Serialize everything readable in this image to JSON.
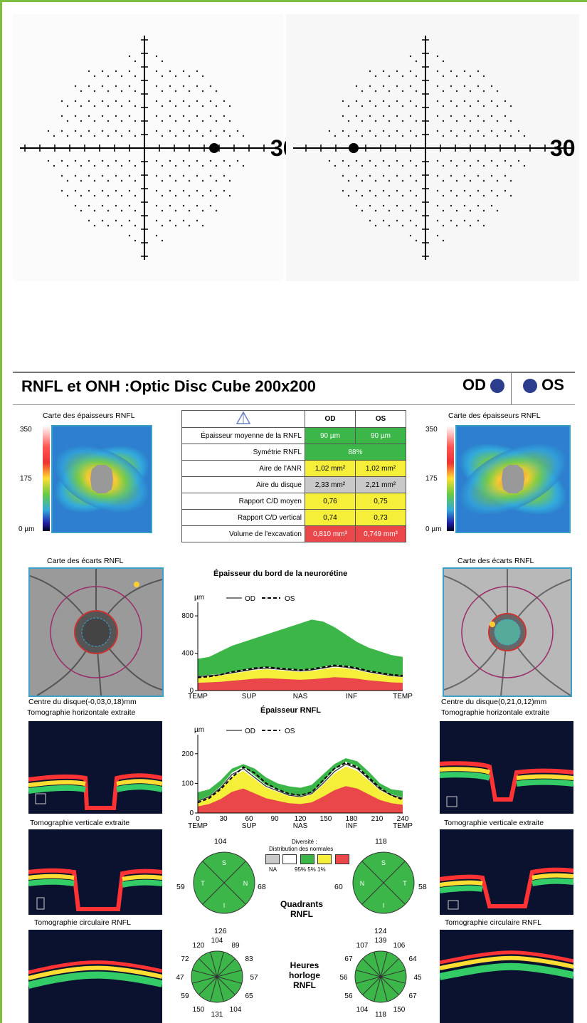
{
  "visual_field": {
    "left_scale_label": "30",
    "right_scale_label": "30"
  },
  "report": {
    "title": "RNFL et ONH :Optic Disc Cube 200x200",
    "eye_od": "OD",
    "eye_os": "OS",
    "thickness_map_title": "Carte des épaisseurs RNFL",
    "scale_max": "350",
    "scale_mid": "175",
    "scale_min": "0 µm",
    "scale_min_right": "0 µm",
    "deviation_map_title": "Carte des écarts RNFL",
    "disc_center_od": "Centre du disque(-0,03,0,18)mm",
    "disc_center_os": "Centre du disque(0,21,0,12)mm",
    "tomo_horizontal": "Tomographie horizontale extraite",
    "tomo_vertical": "Tomographie verticale extraite",
    "tomo_circular": "Tomographie circulaire RNFL"
  },
  "table": {
    "col_od": "OD",
    "col_os": "OS",
    "rows": [
      {
        "label": "Épaisseur moyenne de la RNFL",
        "od": "90 µm",
        "os": "90 µm"
      },
      {
        "label": "Symétrie RNFL",
        "both": "88%"
      },
      {
        "label": "Aire de l'ANR",
        "od": "1,02 mm²",
        "os": "1,02 mm²"
      },
      {
        "label": "Aire du disque",
        "od": "2,33 mm²",
        "os": "2,21 mm²"
      },
      {
        "label": "Rapport C/D moyen",
        "od": "0,76",
        "os": "0,75"
      },
      {
        "label": "Rapport C/D vertical",
        "od": "0,74",
        "os": "0,73"
      },
      {
        "label": "Volume de l'excavation",
        "od": "0,810 mm³",
        "os": "0,749 mm³"
      }
    ]
  },
  "chart_data": [
    {
      "type": "area",
      "title": "Épaisseur du bord de la neurorétine",
      "ylabel": "µm",
      "legend": [
        "OD",
        "OS"
      ],
      "yticks": [
        "0",
        "400",
        "800"
      ],
      "xticks": [
        "TEMP",
        "SUP",
        "NAS",
        "INF",
        "TEMP"
      ],
      "ylim": [
        0,
        900
      ],
      "normal_upper": [
        340,
        360,
        420,
        480,
        520,
        560,
        600,
        640,
        680,
        720,
        760,
        740,
        680,
        600,
        520,
        460,
        420,
        380,
        360
      ],
      "od": [
        150,
        160,
        170,
        190,
        210,
        230,
        240,
        230,
        220,
        210,
        220,
        240,
        260,
        250,
        230,
        200,
        180,
        160,
        150
      ],
      "os": [
        140,
        150,
        170,
        200,
        220,
        240,
        250,
        240,
        230,
        220,
        230,
        250,
        270,
        260,
        240,
        210,
        190,
        170,
        160
      ]
    },
    {
      "type": "area",
      "title": "Épaisseur RNFL",
      "ylabel": "µm",
      "legend": [
        "OD",
        "OS"
      ],
      "yticks": [
        "0",
        "100",
        "200"
      ],
      "xticks": [
        "0",
        "30",
        "60",
        "90",
        "120",
        "150",
        "180",
        "210",
        "240"
      ],
      "xticks2": [
        "TEMP",
        "SUP",
        "NAS",
        "INF",
        "TEMP"
      ],
      "ylim": [
        0,
        250
      ],
      "normal_upper": [
        70,
        80,
        110,
        150,
        165,
        150,
        120,
        100,
        90,
        85,
        95,
        130,
        165,
        185,
        175,
        140,
        100,
        80,
        75
      ],
      "od": [
        40,
        55,
        85,
        130,
        150,
        120,
        90,
        75,
        60,
        55,
        65,
        100,
        140,
        165,
        150,
        115,
        80,
        60,
        50
      ],
      "os": [
        35,
        50,
        80,
        120,
        155,
        135,
        100,
        80,
        65,
        60,
        70,
        110,
        150,
        170,
        155,
        120,
        85,
        60,
        45
      ]
    }
  ],
  "legend_box": {
    "title": "Diversité :",
    "subtitle": "Distribution des normales",
    "na": "NA",
    "pct": "95% 5% 1%"
  },
  "quadrants": {
    "label": "Quadrants RNFL",
    "od": {
      "top": "104",
      "left": "59",
      "right": "68",
      "bottom": "126",
      "letters": [
        "S",
        "T",
        "N",
        "I"
      ]
    },
    "os": {
      "top": "118",
      "left": "60",
      "right": "58",
      "bottom": "124",
      "letters": [
        "S",
        "N",
        "T",
        "I"
      ]
    }
  },
  "clock": {
    "label": "Heures horloge RNFL",
    "od": [
      "120",
      "104",
      "89",
      "83",
      "57",
      "65",
      "104",
      "131",
      "150",
      "59",
      "47",
      "72"
    ],
    "os": [
      "107",
      "139",
      "106",
      "64",
      "45",
      "67",
      "150",
      "118",
      "104",
      "56",
      "56",
      "67"
    ]
  },
  "colors": {
    "green": "#3cb649",
    "yellow": "#f5ef3a",
    "red": "#e9474a",
    "gray": "#c9c9c9",
    "accent": "#3aa0c8"
  }
}
